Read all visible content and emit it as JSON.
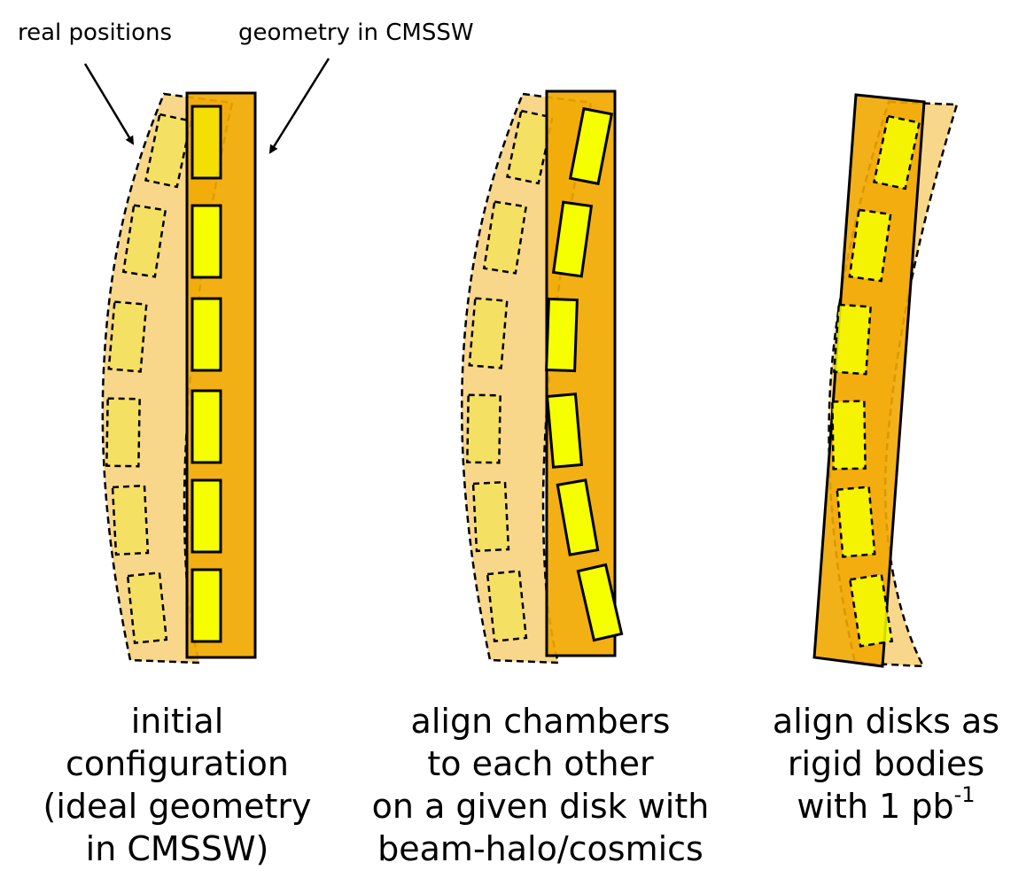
{
  "annotations": {
    "real_positions": "real positions",
    "geometry_in_cmssw": "geometry in CMSSW"
  },
  "colors": {
    "disk_real": "#f8d78a",
    "disk_geometry": "#f2a900",
    "chamber": "#f5ff00",
    "outline": "#000000"
  },
  "panels": [
    {
      "caption_lines": [
        "initial",
        "configuration",
        "(ideal geometry",
        "in CMSSW)"
      ]
    },
    {
      "caption_lines": [
        "align chambers",
        "to each other",
        "on a given disk with",
        "beam-halo/cosmics"
      ]
    },
    {
      "caption_lines": [
        "align disks as",
        "rigid bodies"
      ],
      "caption_last_prefix": "with 1 pb",
      "caption_last_sup": "-1"
    }
  ]
}
